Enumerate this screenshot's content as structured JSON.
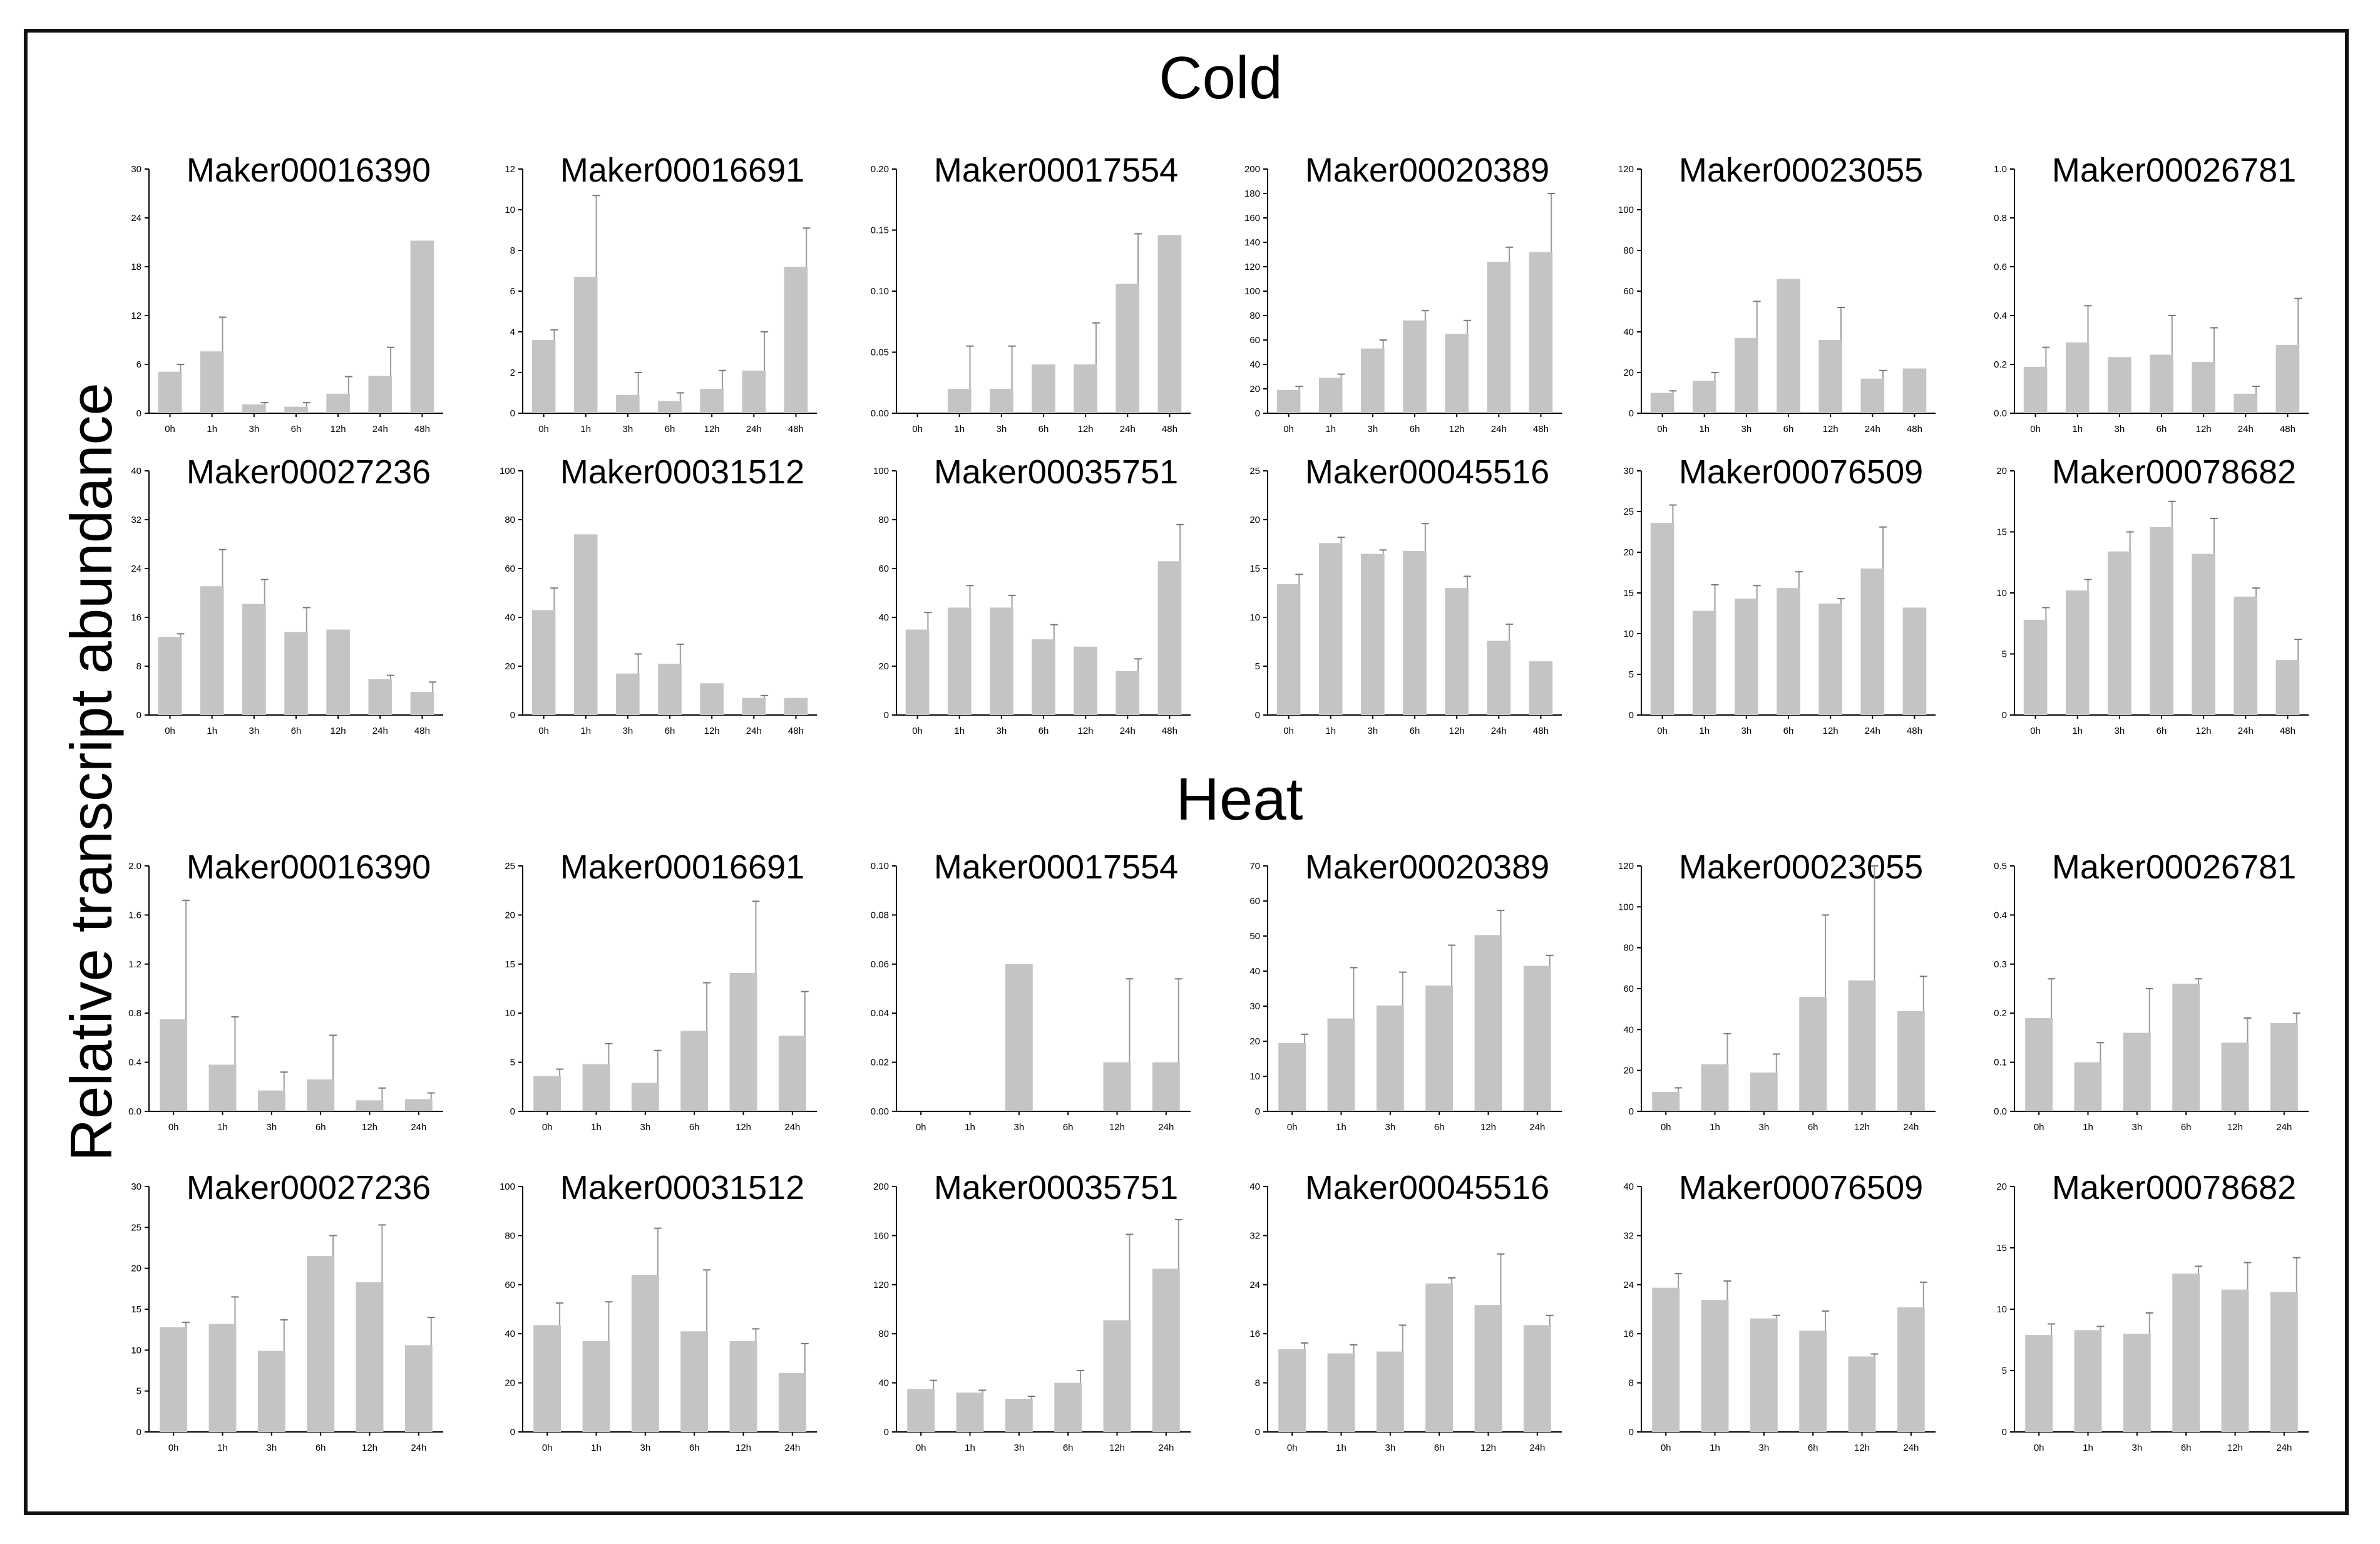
{
  "y_axis_label": "Relative transcript abundance",
  "sections": [
    "Cold",
    "Heat"
  ],
  "style": {
    "bar_color": "#c4c4c4",
    "axis_color": "#000000"
  },
  "chart_data": [
    {
      "type": "bar",
      "section": "Cold",
      "title": "Maker00016390",
      "categories": [
        "0h",
        "1h",
        "3h",
        "6h",
        "12h",
        "24h",
        "48h"
      ],
      "values": [
        5.1,
        7.6,
        1.1,
        0.8,
        2.4,
        4.6,
        21.2
      ],
      "errors": [
        0.9,
        4.2,
        0.2,
        0.5,
        2.1,
        3.5,
        0
      ],
      "ylim": [
        0,
        30
      ],
      "yticks": [
        "0",
        "6",
        "12",
        "18",
        "24",
        "30"
      ]
    },
    {
      "type": "bar",
      "section": "Cold",
      "title": "Maker00016691",
      "categories": [
        "0h",
        "1h",
        "3h",
        "6h",
        "12h",
        "24h",
        "48h"
      ],
      "values": [
        3.6,
        6.7,
        0.9,
        0.6,
        1.2,
        2.1,
        7.2
      ],
      "errors": [
        0.5,
        4.0,
        1.1,
        0.4,
        0.9,
        1.9,
        1.9
      ],
      "ylim": [
        0,
        12
      ],
      "yticks": [
        "0",
        "2",
        "4",
        "6",
        "8",
        "10",
        "12"
      ]
    },
    {
      "type": "bar",
      "section": "Cold",
      "title": "Maker00017554",
      "categories": [
        "0h",
        "1h",
        "3h",
        "6h",
        "12h",
        "24h",
        "48h"
      ],
      "values": [
        0,
        0.02,
        0.02,
        0.04,
        0.04,
        0.106,
        0.146
      ],
      "errors": [
        0,
        0.035,
        0.035,
        0,
        0.034,
        0.041,
        0
      ],
      "ylim": [
        0,
        0.2
      ],
      "yticks": [
        "0.00",
        "0.05",
        "0.10",
        "0.15",
        "0.20"
      ]
    },
    {
      "type": "bar",
      "section": "Cold",
      "title": "Maker00020389",
      "categories": [
        "0h",
        "1h",
        "3h",
        "6h",
        "12h",
        "24h",
        "48h"
      ],
      "values": [
        19,
        29,
        53,
        76,
        65,
        124,
        132
      ],
      "errors": [
        3,
        3,
        7,
        8,
        11,
        12,
        48
      ],
      "ylim": [
        0,
        200
      ],
      "yticks": [
        "0",
        "20",
        "40",
        "60",
        "80",
        "100",
        "120",
        "140",
        "160",
        "180",
        "200"
      ]
    },
    {
      "type": "bar",
      "section": "Cold",
      "title": "Maker00023055",
      "categories": [
        "0h",
        "1h",
        "3h",
        "6h",
        "12h",
        "24h",
        "48h"
      ],
      "values": [
        10,
        16,
        37,
        66,
        36,
        17,
        22
      ],
      "errors": [
        1,
        4,
        18,
        0,
        16,
        4,
        0
      ],
      "ylim": [
        0,
        120
      ],
      "yticks": [
        "0",
        "20",
        "40",
        "60",
        "80",
        "100",
        "120"
      ]
    },
    {
      "type": "bar",
      "section": "Cold",
      "title": "Maker00026781",
      "categories": [
        "0h",
        "1h",
        "3h",
        "6h",
        "12h",
        "24h",
        "48h"
      ],
      "values": [
        0.19,
        0.29,
        0.23,
        0.24,
        0.21,
        0.08,
        0.28
      ],
      "errors": [
        0.08,
        0.15,
        0,
        0.16,
        0.14,
        0.03,
        0.19
      ],
      "ylim": [
        0,
        1.0
      ],
      "yticks": [
        "0.0",
        "0.2",
        "0.4",
        "0.6",
        "0.8",
        "1.0"
      ]
    },
    {
      "type": "bar",
      "section": "Cold",
      "title": "Maker00027236",
      "categories": [
        "0h",
        "1h",
        "3h",
        "6h",
        "12h",
        "24h",
        "48h"
      ],
      "values": [
        12.8,
        21.1,
        18.2,
        13.6,
        14.0,
        5.9,
        3.8
      ],
      "errors": [
        0.5,
        6,
        4,
        4,
        0,
        0.6,
        1.6
      ],
      "ylim": [
        0,
        40
      ],
      "yticks": [
        "0",
        "8",
        "16",
        "24",
        "32",
        "40"
      ]
    },
    {
      "type": "bar",
      "section": "Cold",
      "title": "Maker00031512",
      "categories": [
        "0h",
        "1h",
        "3h",
        "6h",
        "12h",
        "24h",
        "48h"
      ],
      "values": [
        43,
        74,
        17,
        21,
        13,
        7,
        7
      ],
      "errors": [
        9,
        0,
        8,
        8,
        0,
        1,
        0
      ],
      "ylim": [
        0,
        100
      ],
      "yticks": [
        "0",
        "20",
        "40",
        "60",
        "80",
        "100"
      ]
    },
    {
      "type": "bar",
      "section": "Cold",
      "title": "Maker00035751",
      "categories": [
        "0h",
        "1h",
        "3h",
        "6h",
        "12h",
        "24h",
        "48h"
      ],
      "values": [
        35,
        44,
        44,
        31,
        28,
        18,
        63
      ],
      "errors": [
        7,
        9,
        5,
        6,
        0,
        5,
        15
      ],
      "ylim": [
        0,
        100
      ],
      "yticks": [
        "0",
        "20",
        "40",
        "60",
        "80",
        "100"
      ]
    },
    {
      "type": "bar",
      "section": "Cold",
      "title": "Maker00045516",
      "categories": [
        "0h",
        "1h",
        "3h",
        "6h",
        "12h",
        "24h",
        "48h"
      ],
      "values": [
        13.4,
        17.6,
        16.5,
        16.8,
        13.0,
        7.6,
        5.5
      ],
      "errors": [
        1.0,
        0.6,
        0.4,
        2.8,
        1.2,
        1.7,
        0
      ],
      "ylim": [
        0,
        25
      ],
      "yticks": [
        "0",
        "5",
        "10",
        "15",
        "20",
        "25"
      ]
    },
    {
      "type": "bar",
      "section": "Cold",
      "title": "Maker00076509",
      "categories": [
        "0h",
        "1h",
        "3h",
        "6h",
        "12h",
        "24h",
        "48h"
      ],
      "values": [
        23.6,
        12.8,
        14.3,
        15.6,
        13.7,
        18.0,
        13.2
      ],
      "errors": [
        2.2,
        3.2,
        1.6,
        2.0,
        0.6,
        5.1,
        0
      ],
      "ylim": [
        0,
        30
      ],
      "yticks": [
        "0",
        "5",
        "10",
        "15",
        "20",
        "25",
        "30"
      ]
    },
    {
      "type": "bar",
      "section": "Cold",
      "title": "Maker00078682",
      "categories": [
        "0h",
        "1h",
        "3h",
        "6h",
        "12h",
        "24h",
        "48h"
      ],
      "values": [
        7.8,
        10.2,
        13.4,
        15.4,
        13.2,
        9.7,
        4.5
      ],
      "errors": [
        1,
        0.9,
        1.6,
        2.1,
        2.9,
        0.7,
        1.7
      ],
      "ylim": [
        0,
        20
      ],
      "yticks": [
        "0",
        "5",
        "10",
        "15",
        "20"
      ]
    },
    {
      "type": "bar",
      "section": "Heat",
      "title": "Maker00016390",
      "categories": [
        "0h",
        "1h",
        "3h",
        "6h",
        "12h",
        "24h"
      ],
      "values": [
        0.75,
        0.38,
        0.17,
        0.26,
        0.09,
        0.1
      ],
      "errors": [
        0.97,
        0.39,
        0.15,
        0.36,
        0.1,
        0.05
      ],
      "ylim": [
        0,
        2.0
      ],
      "yticks": [
        "0.0",
        "0.4",
        "0.8",
        "1.2",
        "1.6",
        "2.0"
      ]
    },
    {
      "type": "bar",
      "section": "Heat",
      "title": "Maker00016691",
      "categories": [
        "0h",
        "1h",
        "3h",
        "6h",
        "12h",
        "24h"
      ],
      "values": [
        3.6,
        4.8,
        2.9,
        8.2,
        14.1,
        7.7
      ],
      "errors": [
        0.7,
        2.1,
        3.3,
        4.9,
        7.3,
        4.5
      ],
      "ylim": [
        0,
        25
      ],
      "yticks": [
        "0",
        "5",
        "10",
        "15",
        "20",
        "25"
      ]
    },
    {
      "type": "bar",
      "section": "Heat",
      "title": "Maker00017554",
      "categories": [
        "0h",
        "1h",
        "3h",
        "6h",
        "12h",
        "24h"
      ],
      "values": [
        0,
        0,
        0.06,
        0,
        0.02,
        0.02
      ],
      "errors": [
        0,
        0,
        0,
        0,
        0.034,
        0.034
      ],
      "ylim": [
        0,
        0.1
      ],
      "yticks": [
        "0.00",
        "0.02",
        "0.04",
        "0.06",
        "0.08",
        "0.10"
      ]
    },
    {
      "type": "bar",
      "section": "Heat",
      "title": "Maker00020389",
      "categories": [
        "0h",
        "1h",
        "3h",
        "6h",
        "12h",
        "24h"
      ],
      "values": [
        19.5,
        26.5,
        30.2,
        35.9,
        50.3,
        41.5
      ],
      "errors": [
        2.5,
        14.5,
        9.5,
        11.5,
        7,
        3
      ],
      "ylim": [
        0,
        70
      ],
      "yticks": [
        "0",
        "10",
        "20",
        "30",
        "40",
        "50",
        "60",
        "70"
      ]
    },
    {
      "type": "bar",
      "section": "Heat",
      "title": "Maker00023055",
      "categories": [
        "0h",
        "1h",
        "3h",
        "6h",
        "12h",
        "24h"
      ],
      "values": [
        9.5,
        23,
        19,
        56,
        64,
        49
      ],
      "errors": [
        2,
        15,
        9,
        40,
        56,
        17
      ],
      "ylim": [
        0,
        120
      ],
      "yticks": [
        "0",
        "20",
        "40",
        "60",
        "80",
        "100",
        "120"
      ]
    },
    {
      "type": "bar",
      "section": "Heat",
      "title": "Maker00026781",
      "categories": [
        "0h",
        "1h",
        "3h",
        "6h",
        "12h",
        "24h"
      ],
      "values": [
        0.19,
        0.1,
        0.16,
        0.26,
        0.14,
        0.18
      ],
      "errors": [
        0.08,
        0.04,
        0.09,
        0.01,
        0.05,
        0.02
      ],
      "ylim": [
        0,
        0.5
      ],
      "yticks": [
        "0.0",
        "0.1",
        "0.2",
        "0.3",
        "0.4",
        "0.5"
      ]
    },
    {
      "type": "bar",
      "section": "Heat",
      "title": "Maker00027236",
      "categories": [
        "0h",
        "1h",
        "3h",
        "6h",
        "12h",
        "24h"
      ],
      "values": [
        12.8,
        13.2,
        9.9,
        21.5,
        18.3,
        10.6
      ],
      "errors": [
        0.6,
        3.3,
        3.8,
        2.5,
        7,
        3.4
      ],
      "ylim": [
        0,
        30
      ],
      "yticks": [
        "0",
        "5",
        "10",
        "15",
        "20",
        "25",
        "30"
      ]
    },
    {
      "type": "bar",
      "section": "Heat",
      "title": "Maker00031512",
      "categories": [
        "0h",
        "1h",
        "3h",
        "6h",
        "12h",
        "24h"
      ],
      "values": [
        43.5,
        37,
        64,
        41,
        37,
        24
      ],
      "errors": [
        9,
        16,
        19,
        25,
        5,
        12
      ],
      "ylim": [
        0,
        100
      ],
      "yticks": [
        "0",
        "20",
        "40",
        "60",
        "80",
        "100"
      ]
    },
    {
      "type": "bar",
      "section": "Heat",
      "title": "Maker00035751",
      "categories": [
        "0h",
        "1h",
        "3h",
        "6h",
        "12h",
        "24h"
      ],
      "values": [
        35,
        32,
        27,
        40,
        91,
        133
      ],
      "errors": [
        7,
        2,
        2,
        10,
        70,
        40
      ],
      "ylim": [
        0,
        200
      ],
      "yticks": [
        "0",
        "40",
        "80",
        "120",
        "160",
        "200"
      ]
    },
    {
      "type": "bar",
      "section": "Heat",
      "title": "Maker00045516",
      "categories": [
        "0h",
        "1h",
        "3h",
        "6h",
        "12h",
        "24h"
      ],
      "values": [
        13.5,
        12.8,
        13.1,
        24.2,
        20.7,
        17.4
      ],
      "errors": [
        1,
        1.4,
        4.3,
        0.9,
        8.3,
        1.6
      ],
      "ylim": [
        0,
        40
      ],
      "yticks": [
        "0",
        "8",
        "16",
        "24",
        "32",
        "40"
      ]
    },
    {
      "type": "bar",
      "section": "Heat",
      "title": "Maker00076509",
      "categories": [
        "0h",
        "1h",
        "3h",
        "6h",
        "12h",
        "24h"
      ],
      "values": [
        23.5,
        21.5,
        18.5,
        16.5,
        12.3,
        20.3
      ],
      "errors": [
        2.3,
        3.1,
        0.5,
        3.2,
        0.4,
        4.1
      ],
      "ylim": [
        0,
        40
      ],
      "yticks": [
        "0",
        "8",
        "16",
        "24",
        "32",
        "40"
      ]
    },
    {
      "type": "bar",
      "section": "Heat",
      "title": "Maker00078682",
      "categories": [
        "0h",
        "1h",
        "3h",
        "6h",
        "12h",
        "24h"
      ],
      "values": [
        7.9,
        8.3,
        8.0,
        12.9,
        11.6,
        11.4
      ],
      "errors": [
        0.9,
        0.3,
        1.7,
        0.6,
        2.2,
        2.8
      ],
      "ylim": [
        0,
        20
      ],
      "yticks": [
        "0",
        "5",
        "10",
        "15",
        "20"
      ]
    }
  ]
}
